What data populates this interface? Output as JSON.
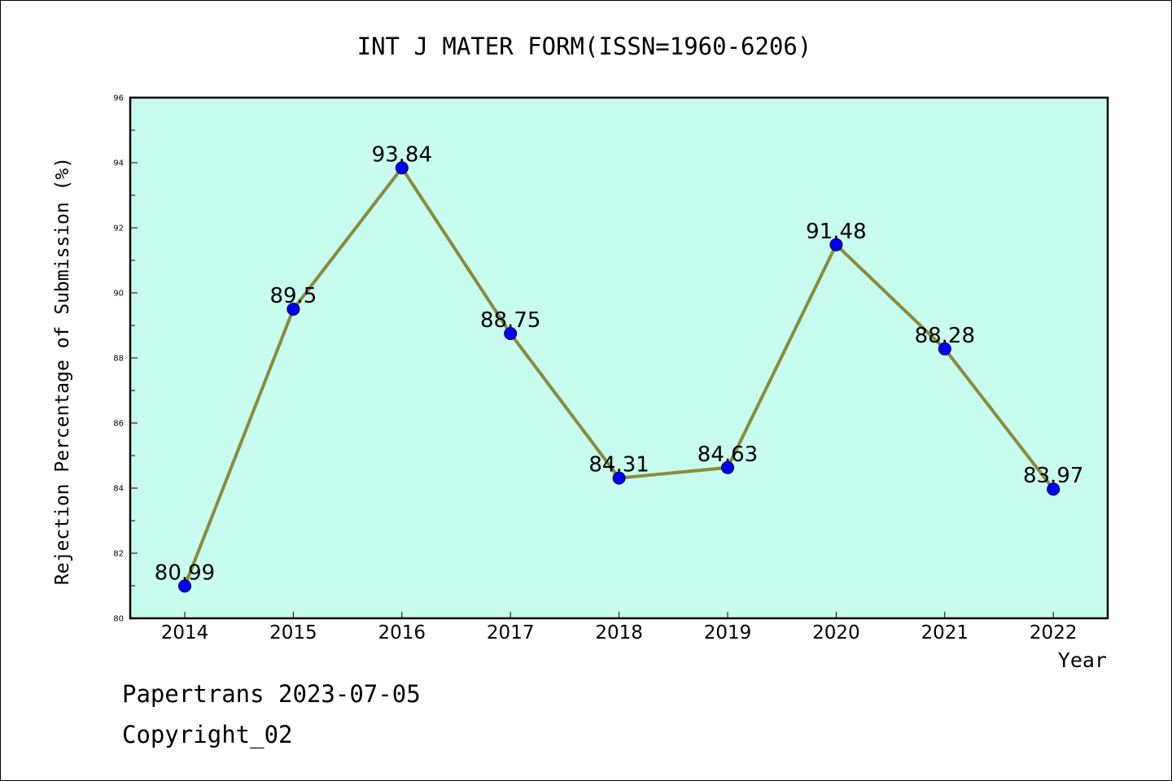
{
  "chart_data": {
    "type": "line",
    "title": "INT J MATER FORM(ISSN=1960-6206)",
    "xlabel": "Year",
    "ylabel": "Rejection Percentage of Submission (%)",
    "categories": [
      "2014",
      "2015",
      "2016",
      "2017",
      "2018",
      "2019",
      "2020",
      "2021",
      "2022"
    ],
    "values": [
      80.99,
      89.5,
      93.84,
      88.75,
      84.31,
      84.63,
      91.48,
      88.28,
      83.97
    ],
    "data_labels": [
      "80.99",
      "89.5",
      "93.84",
      "88.75",
      "84.31",
      "84.63",
      "91.48",
      "88.28",
      "83.97"
    ],
    "ylim": [
      80,
      96
    ],
    "yticks": [
      "80",
      "82",
      "84",
      "86",
      "88",
      "90",
      "92",
      "94",
      "96"
    ],
    "grid": false,
    "legend": "none",
    "colors": {
      "plot_background": "#c8fcee",
      "line": "#8b8b3a",
      "marker": "#0000ff"
    }
  },
  "footer": {
    "line1": "Papertrans 2023-07-05",
    "line2": "Copyright_02"
  }
}
